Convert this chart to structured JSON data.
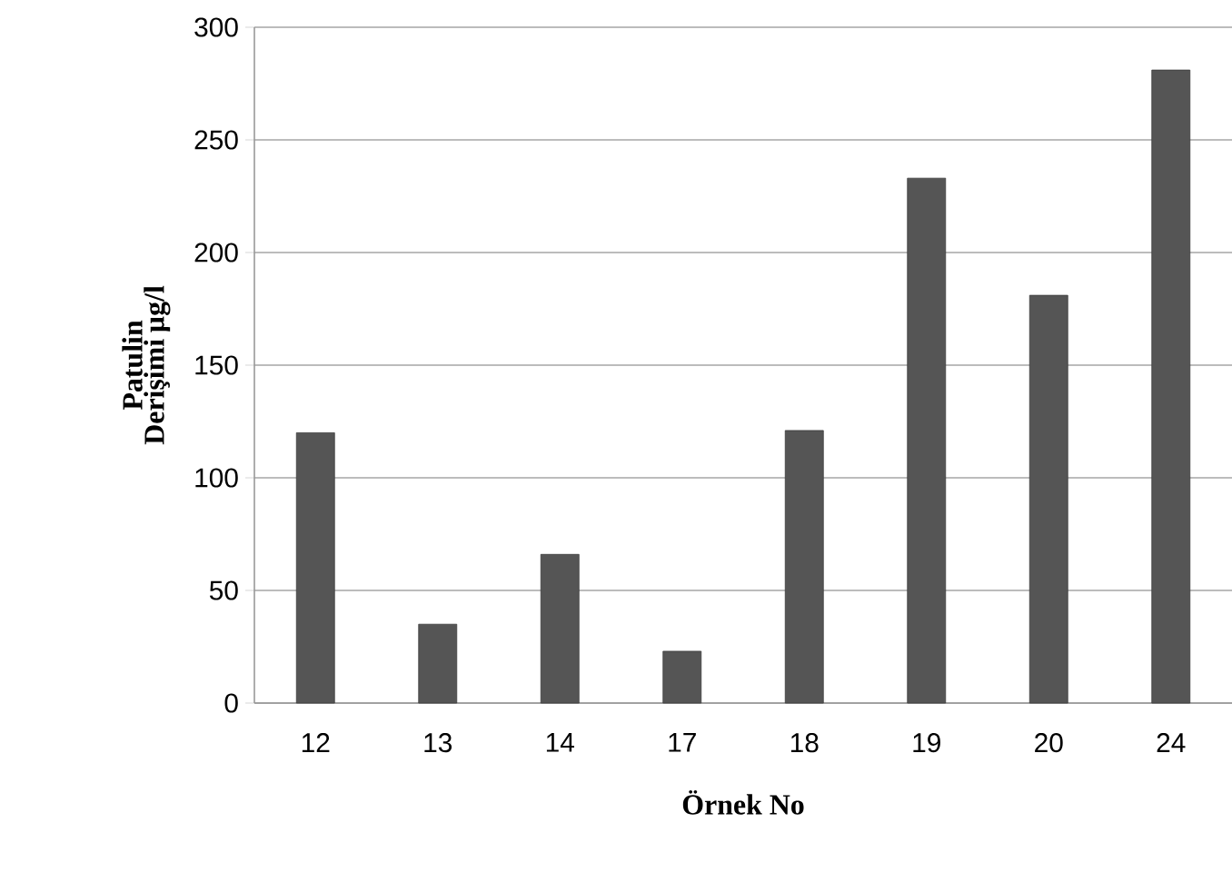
{
  "chart_data": {
    "type": "bar",
    "xlabel": "Örnek No",
    "ylabel": "Patulin Derişimi µg/l",
    "categories": [
      "12",
      "13",
      "14",
      "17",
      "18",
      "19",
      "20",
      "24"
    ],
    "values": [
      120,
      35,
      66,
      23,
      121,
      233,
      181,
      281
    ],
    "color": "#555555",
    "ylim": [
      0,
      300
    ],
    "yticks": [
      0,
      50,
      100,
      150,
      200,
      250,
      300
    ],
    "grid": "y"
  }
}
